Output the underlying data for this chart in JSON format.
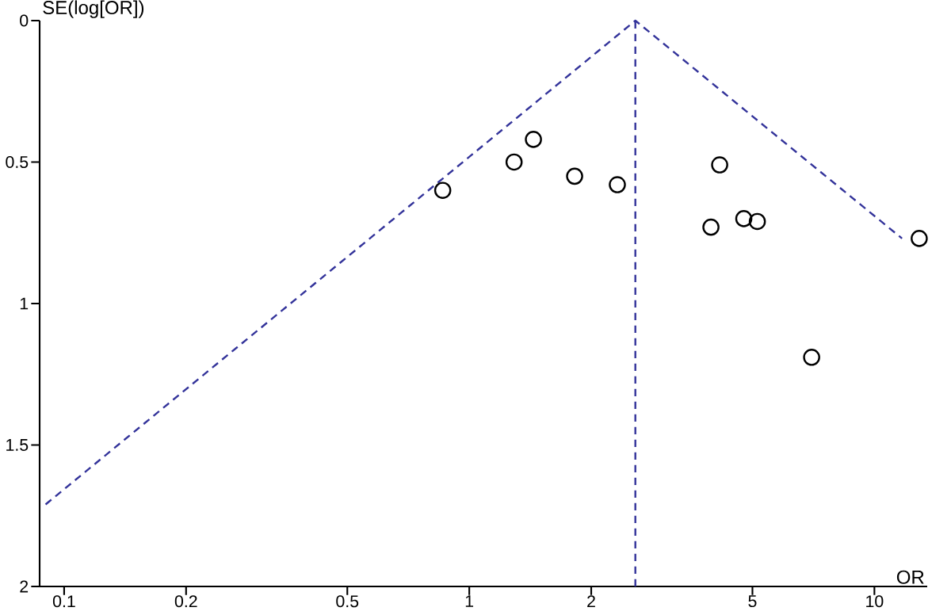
{
  "chart_data": {
    "type": "scatter",
    "xlabel": "OR",
    "ylabel": "SE(log[OR])",
    "log": "x",
    "xlim": [
      0.087,
      13.5
    ],
    "ylim": [
      2,
      0
    ],
    "xticks": [
      0.1,
      0.2,
      0.5,
      1,
      2,
      5,
      10
    ],
    "yticks": [
      0,
      0.5,
      1,
      1.5,
      2
    ],
    "series": [
      {
        "color": "#000000",
        "marker": "circle",
        "x": [
          0.86,
          1.29,
          1.44,
          1.82,
          2.32,
          4.15,
          3.95,
          4.76,
          5.14,
          12.9,
          7.0
        ],
        "values": [
          0.6,
          0.5,
          0.42,
          0.55,
          0.58,
          0.51,
          0.73,
          0.7,
          0.71,
          0.77,
          1.19
        ]
      },
      {
        "type": "line",
        "color": "#33339a",
        "line_style": "dashed",
        "marker": "none",
        "x": [
          0.09,
          2.57,
          11.7
        ],
        "values": [
          1.71,
          0,
          0.77
        ]
      }
    ],
    "ref_lines": [
      {
        "axis": "x",
        "value": 2.57,
        "color": "#33339a",
        "line_style": "dashed"
      }
    ]
  }
}
